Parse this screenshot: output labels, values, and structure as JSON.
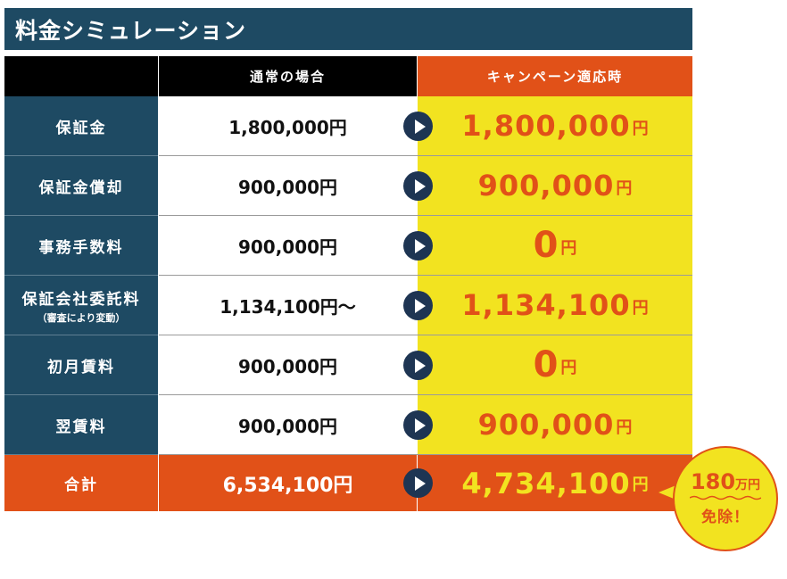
{
  "title": "料金シミュレーション",
  "headers": {
    "normal": "通常の場合",
    "campaign": "キャンペーン適応時"
  },
  "rows": [
    {
      "label": "保証金",
      "sub": "",
      "normal": "1,800,000円",
      "campaign_value": "1,800,000",
      "campaign_unit": "円"
    },
    {
      "label": "保証金償却",
      "sub": "",
      "normal": "900,000円",
      "campaign_value": "900,000",
      "campaign_unit": "円"
    },
    {
      "label": "事務手数料",
      "sub": "",
      "normal": "900,000円",
      "campaign_value": "0",
      "campaign_unit": "円"
    },
    {
      "label": "保証会社委託料",
      "sub": "（審査により変動）",
      "normal": "1,134,100円〜",
      "campaign_value": "1,134,100",
      "campaign_unit": "円"
    },
    {
      "label": "初月賃料",
      "sub": "",
      "normal": "900,000円",
      "campaign_value": "0",
      "campaign_unit": "円"
    },
    {
      "label": "翌賃料",
      "sub": "",
      "normal": "900,000円",
      "campaign_value": "900,000",
      "campaign_unit": "円"
    }
  ],
  "total": {
    "label": "合計",
    "normal": "6,534,100円",
    "campaign_value": "4,734,100",
    "campaign_unit": "円"
  },
  "bubble": {
    "amount": "180",
    "unit": "万円",
    "text": "免除！"
  },
  "colors": {
    "navy": "#1e4a63",
    "orange": "#e15118",
    "yellow": "#f2e320",
    "arrow": "#1e3553"
  },
  "icons": {
    "arrow": "play-arrow-icon"
  }
}
